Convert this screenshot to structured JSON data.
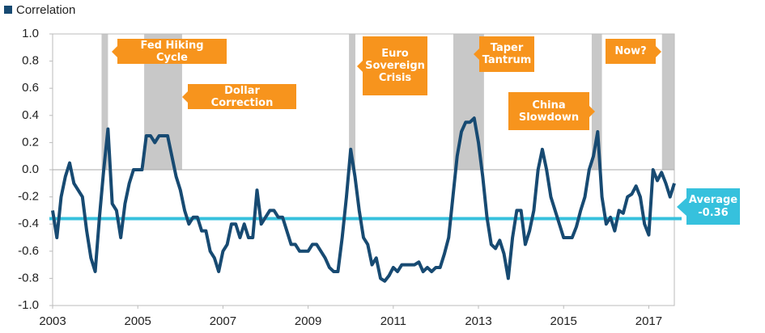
{
  "chart_data": {
    "type": "line",
    "xlim": [
      2003,
      2017.6
    ],
    "xticks": [
      2003,
      2005,
      2007,
      2009,
      2011,
      2013,
      2015,
      2017
    ],
    "ylim": [
      -1,
      1
    ],
    "yticks": [
      {
        "value": 1,
        "label": "1.0"
      },
      0.8,
      0.6,
      0.4,
      0.2,
      {
        "value": 0,
        "label": "0.0"
      },
      -0.2,
      -0.4,
      -0.6,
      -0.8,
      {
        "value": -1,
        "label": "-1.0"
      }
    ],
    "grid": false,
    "legend": "top-left",
    "x": [
      2003.0,
      2003.1,
      2003.2,
      2003.3,
      2003.4,
      2003.5,
      2003.6,
      2003.7,
      2003.8,
      2003.9,
      2004.0,
      2004.1,
      2004.2,
      2004.3,
      2004.4,
      2004.5,
      2004.6,
      2004.7,
      2004.8,
      2004.9,
      2005.0,
      2005.1,
      2005.2,
      2005.3,
      2005.4,
      2005.5,
      2005.6,
      2005.7,
      2005.8,
      2005.9,
      2006.0,
      2006.1,
      2006.2,
      2006.3,
      2006.4,
      2006.5,
      2006.6,
      2006.7,
      2006.8,
      2006.9,
      2007.0,
      2007.1,
      2007.2,
      2007.3,
      2007.4,
      2007.5,
      2007.6,
      2007.7,
      2007.8,
      2007.9,
      2008.0,
      2008.1,
      2008.2,
      2008.3,
      2008.4,
      2008.5,
      2008.6,
      2008.7,
      2008.8,
      2008.9,
      2009.0,
      2009.1,
      2009.2,
      2009.3,
      2009.4,
      2009.5,
      2009.6,
      2009.7,
      2009.8,
      2009.9,
      2010.0,
      2010.1,
      2010.2,
      2010.3,
      2010.4,
      2010.5,
      2010.6,
      2010.7,
      2010.8,
      2010.9,
      2011.0,
      2011.1,
      2011.2,
      2011.3,
      2011.4,
      2011.5,
      2011.6,
      2011.7,
      2011.8,
      2011.9,
      2012.0,
      2012.1,
      2012.2,
      2012.3,
      2012.4,
      2012.5,
      2012.6,
      2012.7,
      2012.8,
      2012.9,
      2013.0,
      2013.1,
      2013.2,
      2013.3,
      2013.4,
      2013.5,
      2013.6,
      2013.7,
      2013.8,
      2013.9,
      2014.0,
      2014.1,
      2014.2,
      2014.3,
      2014.4,
      2014.5,
      2014.6,
      2014.7,
      2014.8,
      2014.9,
      2015.0,
      2015.1,
      2015.2,
      2015.3,
      2015.4,
      2015.5,
      2015.6,
      2015.7,
      2015.8,
      2015.9,
      2016.0,
      2016.1,
      2016.2,
      2016.3,
      2016.4,
      2016.5,
      2016.6,
      2016.7,
      2016.8,
      2016.9,
      2017.0,
      2017.1,
      2017.2,
      2017.3,
      2017.4,
      2017.5,
      2017.6
    ],
    "series": [
      {
        "name": "Correlation",
        "color": "#174a72",
        "values": [
          -0.3,
          -0.5,
          -0.2,
          -0.05,
          0.05,
          -0.1,
          -0.15,
          -0.2,
          -0.45,
          -0.65,
          -0.75,
          -0.35,
          0.0,
          0.3,
          -0.25,
          -0.3,
          -0.5,
          -0.25,
          -0.1,
          0.0,
          0.0,
          0.0,
          0.25,
          0.25,
          0.2,
          0.25,
          0.25,
          0.25,
          0.1,
          -0.05,
          -0.15,
          -0.3,
          -0.4,
          -0.35,
          -0.35,
          -0.45,
          -0.45,
          -0.6,
          -0.65,
          -0.75,
          -0.6,
          -0.55,
          -0.4,
          -0.4,
          -0.5,
          -0.4,
          -0.5,
          -0.5,
          -0.15,
          -0.4,
          -0.35,
          -0.3,
          -0.3,
          -0.35,
          -0.35,
          -0.45,
          -0.55,
          -0.55,
          -0.6,
          -0.6,
          -0.6,
          -0.55,
          -0.55,
          -0.6,
          -0.65,
          -0.72,
          -0.75,
          -0.75,
          -0.5,
          -0.2,
          0.15,
          -0.05,
          -0.3,
          -0.5,
          -0.55,
          -0.7,
          -0.65,
          -0.8,
          -0.82,
          -0.78,
          -0.72,
          -0.75,
          -0.7,
          -0.7,
          -0.7,
          -0.7,
          -0.68,
          -0.75,
          -0.72,
          -0.75,
          -0.72,
          -0.72,
          -0.62,
          -0.5,
          -0.2,
          0.1,
          0.28,
          0.35,
          0.35,
          0.38,
          0.2,
          -0.05,
          -0.35,
          -0.55,
          -0.58,
          -0.52,
          -0.62,
          -0.8,
          -0.5,
          -0.3,
          -0.3,
          -0.55,
          -0.45,
          -0.3,
          0.0,
          0.15,
          0.0,
          -0.2,
          -0.3,
          -0.4,
          -0.5,
          -0.5,
          -0.5,
          -0.42,
          -0.3,
          -0.2,
          0.0,
          0.1,
          0.28,
          -0.2,
          -0.4,
          -0.35,
          -0.45,
          -0.3,
          -0.32,
          -0.2,
          -0.18,
          -0.12,
          -0.2,
          -0.4,
          -0.48,
          0.0,
          -0.08,
          -0.02,
          -0.1,
          -0.2,
          -0.1
        ]
      }
    ],
    "shaded_periods": [
      [
        2004.15,
        2004.3
      ],
      [
        2005.15,
        2006.04
      ],
      [
        2009.96,
        2010.11
      ],
      [
        2012.41,
        2013.13
      ],
      [
        2015.66,
        2015.9
      ],
      [
        2017.31,
        2017.6
      ]
    ],
    "shade_color": "#c8c8c8",
    "annotations": [
      "Fed Hiking Cycle",
      "Dollar Correction",
      "Euro Sovereign Crisis",
      "Taper Tantrum",
      "China Slowdown",
      "Now?"
    ],
    "annotation_color": "#f7941d",
    "average": {
      "name": "Average",
      "value": -0.36,
      "color": "#36c1dd"
    }
  }
}
